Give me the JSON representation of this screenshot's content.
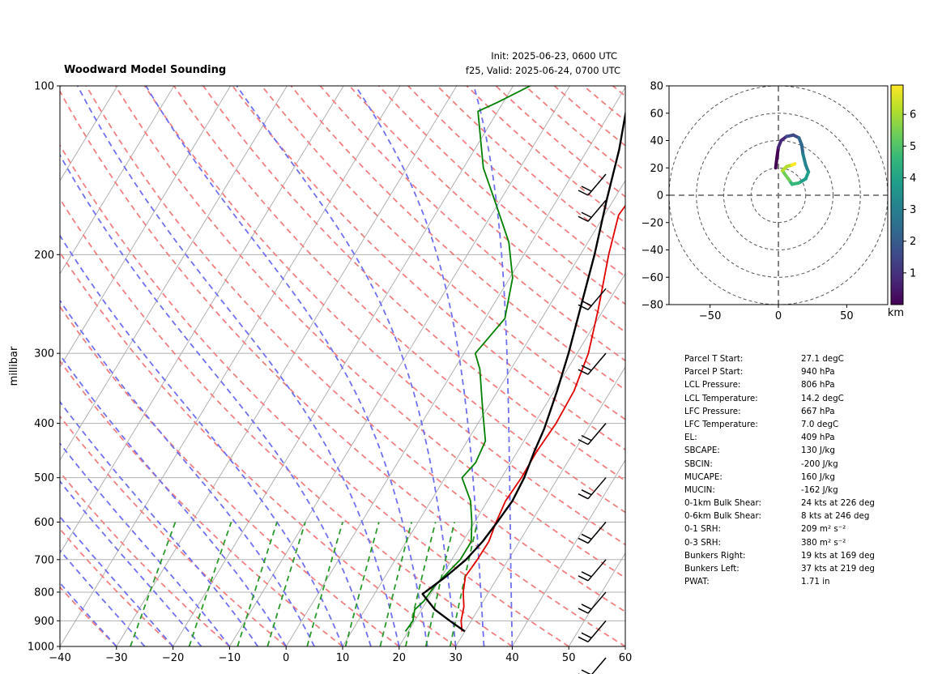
{
  "header": {
    "title": "Woodward Model Sounding",
    "init_line": "Init: 2025-06-23, 0600 UTC",
    "valid_line": "f25, Valid: 2025-06-24, 0700 UTC"
  },
  "skewt": {
    "ylabel": "millibar",
    "pressure_ticks": [
      "100",
      "200",
      "300",
      "400",
      "500",
      "600",
      "700",
      "800",
      "900",
      "1000"
    ],
    "temp_ticks": [
      "−40",
      "−30",
      "−20",
      "−10",
      "0",
      "10",
      "20",
      "30",
      "40",
      "50",
      "60"
    ]
  },
  "hodograph": {
    "x_ticks": [
      "−50",
      "0",
      "50"
    ],
    "y_ticks": [
      "80",
      "60",
      "40",
      "20",
      "0",
      "−20",
      "−40",
      "−60",
      "−80"
    ],
    "colorbar_ticks": [
      "1",
      "2",
      "3",
      "4",
      "5",
      "6"
    ],
    "colorbar_label": "km"
  },
  "parameters": [
    {
      "name": "Parcel T Start:",
      "value": "27.1 degC"
    },
    {
      "name": "Parcel P Start:",
      "value": "940 hPa"
    },
    {
      "name": "LCL Pressure:",
      "value": "806 hPa"
    },
    {
      "name": "LCL Temperature:",
      "value": "14.2 degC"
    },
    {
      "name": "LFC Pressure:",
      "value": "667 hPa"
    },
    {
      "name": "LFC Temperature:",
      "value": "7.0 degC"
    },
    {
      "name": "EL:",
      "value": "409 hPa"
    },
    {
      "name": "SBCAPE:",
      "value": "130 J/kg"
    },
    {
      "name": "SBCIN:",
      "value": "-200 J/kg"
    },
    {
      "name": "MUCAPE:",
      "value": "160 J/kg"
    },
    {
      "name": "MUCIN:",
      "value": "-162 J/kg"
    },
    {
      "name": "0-1km Bulk Shear:",
      "value": "24 kts at 226 deg"
    },
    {
      "name": "0-6km Bulk Shear:",
      "value": "8 kts at 246 deg"
    },
    {
      "name": "0-1 SRH:",
      "value": "209 m² s⁻²"
    },
    {
      "name": "0-3 SRH:",
      "value": "380 m² s⁻²"
    },
    {
      "name": "Bunkers Right:",
      "value": "19 kts at 169 deg"
    },
    {
      "name": "Bunkers Left:",
      "value": "37 kts at 219 deg"
    },
    {
      "name": "PWAT:",
      "value": "1.71 in"
    }
  ],
  "chart_data": [
    {
      "type": "line",
      "subtype": "skew-t log-p",
      "title": "Woodward Model Sounding",
      "ylabel": "millibar",
      "xlim": [
        -40,
        60
      ],
      "ylim": [
        1000,
        100
      ],
      "y_scale": "log",
      "grid": true,
      "colors": {
        "temperature": "#e00000",
        "dewpoint": "#008000",
        "parcel": "#000000",
        "dry_adiabat": "#f08080",
        "moist_adiabat": "#7070f0",
        "mixing_ratio": "#2a9a2a"
      },
      "series": [
        {
          "role": "temperature",
          "points": [
            [
              940,
              29.5
            ],
            [
              900,
              28.2
            ],
            [
              850,
              27.2
            ],
            [
              800,
              25.5
            ],
            [
              750,
              24.2
            ],
            [
              700,
              24.5
            ],
            [
              650,
              24.6
            ],
            [
              600,
              23.8
            ],
            [
              550,
              23.2
            ],
            [
              500,
              23.5
            ],
            [
              450,
              23.4
            ],
            [
              400,
              23.8
            ],
            [
              350,
              23.5
            ],
            [
              300,
              22.0
            ],
            [
              250,
              19.0
            ],
            [
              200,
              15.0
            ],
            [
              170,
              12.5
            ],
            [
              140,
              13.5
            ],
            [
              115,
              19.5
            ],
            [
              100,
              23.0
            ]
          ]
        },
        {
          "role": "dewpoint",
          "points": [
            [
              940,
              19.5
            ],
            [
              900,
              19.7
            ],
            [
              860,
              18.8
            ],
            [
              830,
              19.5
            ],
            [
              780,
              19.8
            ],
            [
              700,
              21.5
            ],
            [
              650,
              21.5
            ],
            [
              600,
              19.5
            ],
            [
              550,
              17.0
            ],
            [
              500,
              13.0
            ],
            [
              470,
              13.8
            ],
            [
              430,
              13.2
            ],
            [
              380,
              9.5
            ],
            [
              320,
              4.5
            ],
            [
              300,
              2.0
            ],
            [
              260,
              3.5
            ],
            [
              220,
              0.5
            ],
            [
              190,
              -4.0
            ],
            [
              160,
              -11.0
            ],
            [
              140,
              -16.5
            ],
            [
              111,
              -23.5
            ],
            [
              107,
              -21.0
            ],
            [
              100,
              -17.0
            ]
          ]
        },
        {
          "role": "parcel",
          "points": [
            [
              940,
              30.0
            ],
            [
              900,
              26.2
            ],
            [
              860,
              22.4
            ],
            [
              806,
              18.5
            ],
            [
              750,
              20.8
            ],
            [
              700,
              22.5
            ],
            [
              650,
              23.5
            ],
            [
              600,
              24.0
            ],
            [
              550,
              24.4
            ],
            [
              500,
              24.0
            ],
            [
              450,
              23.0
            ],
            [
              409,
              22.3
            ],
            [
              350,
              20.5
            ],
            [
              300,
              18.5
            ],
            [
              250,
              15.8
            ],
            [
              200,
              12.5
            ],
            [
              160,
              8.8
            ],
            [
              130,
              5.6
            ],
            [
              110,
              2.5
            ],
            [
              100,
              1.7
            ]
          ]
        }
      ],
      "wind_barb_pressures": [
        100,
        160,
        230,
        300,
        400,
        500,
        600,
        700,
        800,
        900,
        1000
      ]
    },
    {
      "type": "line",
      "subtype": "hodograph",
      "xlim": [
        -80,
        80
      ],
      "ylim": [
        -80,
        80
      ],
      "range_rings": [
        20,
        40,
        60,
        80
      ],
      "colorbar": {
        "min": 0,
        "max": 6.9,
        "label": "km",
        "colormap": "viridis"
      },
      "series": [
        {
          "name": "",
          "points": [
            [
              -2,
              20
            ],
            [
              -1,
              28
            ],
            [
              0,
              35
            ],
            [
              2,
              40
            ],
            [
              6,
              43
            ],
            [
              11,
              44
            ],
            [
              15,
              42
            ],
            [
              17,
              37
            ],
            [
              18,
              30
            ],
            [
              20,
              22
            ],
            [
              22,
              17
            ],
            [
              20,
              12
            ],
            [
              15,
              9
            ],
            [
              10,
              8
            ],
            [
              8,
              11
            ],
            [
              5,
              15
            ],
            [
              3,
              18
            ],
            [
              6,
              21
            ],
            [
              10,
              22
            ],
            [
              12,
              23
            ]
          ]
        }
      ]
    }
  ]
}
